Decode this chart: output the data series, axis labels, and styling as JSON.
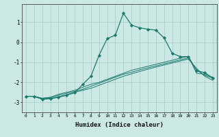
{
  "xlabel": "Humidex (Indice chaleur)",
  "ylabel": "",
  "xlim": [
    -0.5,
    23.5
  ],
  "ylim": [
    -3.5,
    1.9
  ],
  "background_color": "#cce8e4",
  "grid_color": "#aacfcb",
  "line_color": "#1a7a6e",
  "xticks": [
    0,
    1,
    2,
    3,
    4,
    5,
    6,
    7,
    8,
    9,
    10,
    11,
    12,
    13,
    14,
    15,
    16,
    17,
    18,
    19,
    20,
    21,
    22,
    23
  ],
  "yticks": [
    -3,
    -2,
    -1,
    0,
    1
  ],
  "series": [
    {
      "x": [
        0,
        1,
        2,
        3,
        4,
        5,
        6,
        7,
        8,
        9,
        10,
        11,
        12,
        13,
        14,
        15,
        16,
        17,
        18,
        19,
        20,
        21,
        22,
        23
      ],
      "y": [
        -2.7,
        -2.7,
        -2.82,
        -2.8,
        -2.72,
        -2.62,
        -2.5,
        -2.4,
        -2.3,
        -2.15,
        -2.0,
        -1.85,
        -1.7,
        -1.58,
        -1.46,
        -1.35,
        -1.24,
        -1.14,
        -1.04,
        -0.94,
        -0.84,
        -1.3,
        -1.7,
        -1.9
      ],
      "marker": false
    },
    {
      "x": [
        0,
        1,
        2,
        3,
        4,
        5,
        6,
        7,
        8,
        9,
        10,
        11,
        12,
        13,
        14,
        15,
        16,
        17,
        18,
        19,
        20,
        21,
        22,
        23
      ],
      "y": [
        -2.7,
        -2.7,
        -2.8,
        -2.75,
        -2.65,
        -2.55,
        -2.45,
        -2.35,
        -2.2,
        -2.05,
        -1.9,
        -1.75,
        -1.6,
        -1.5,
        -1.38,
        -1.28,
        -1.18,
        -1.08,
        -0.98,
        -0.88,
        -0.78,
        -1.4,
        -1.65,
        -1.8
      ],
      "marker": false
    },
    {
      "x": [
        0,
        1,
        2,
        3,
        4,
        5,
        6,
        7,
        8,
        9,
        10,
        11,
        12,
        13,
        14,
        15,
        16,
        17,
        18,
        19,
        20,
        21,
        22,
        23
      ],
      "y": [
        -2.7,
        -2.7,
        -2.8,
        -2.75,
        -2.6,
        -2.5,
        -2.4,
        -2.25,
        -2.1,
        -2.0,
        -1.85,
        -1.7,
        -1.55,
        -1.4,
        -1.3,
        -1.2,
        -1.1,
        -1.0,
        -0.9,
        -0.8,
        -0.7,
        -1.55,
        -1.6,
        -1.75
      ],
      "marker": false
    },
    {
      "x": [
        0,
        1,
        2,
        3,
        4,
        5,
        6,
        7,
        8,
        9,
        10,
        11,
        12,
        13,
        14,
        15,
        16,
        17,
        18,
        19,
        20,
        21,
        22,
        23
      ],
      "y": [
        -2.7,
        -2.7,
        -2.85,
        -2.82,
        -2.75,
        -2.65,
        -2.52,
        -2.1,
        -1.7,
        -0.65,
        0.18,
        0.35,
        1.45,
        0.85,
        0.72,
        0.65,
        0.6,
        0.22,
        -0.55,
        -0.72,
        -0.72,
        -1.42,
        -1.52,
        -1.78
      ],
      "marker": true
    }
  ]
}
